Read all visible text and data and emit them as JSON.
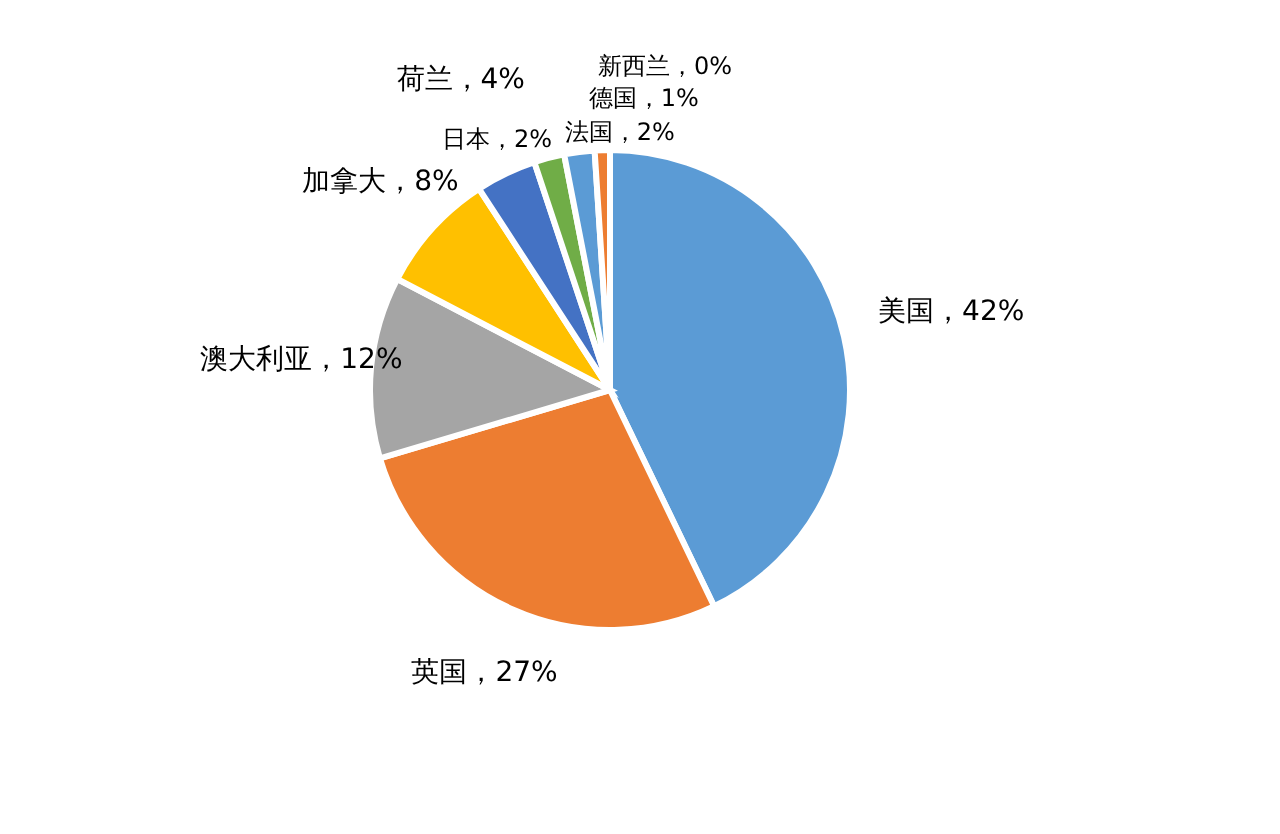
{
  "chart_data": {
    "type": "pie",
    "categories": [
      "美国，42%",
      "英国，27%",
      "澳大利亚，12%",
      "加拿大，8%",
      "荷兰，4%",
      "日本，2%",
      "法国，2%",
      "德国，1%",
      "新西兰，0%"
    ],
    "values": [
      42,
      27,
      12,
      8,
      4,
      2,
      2,
      1,
      0
    ],
    "colors": [
      "#5b9bd5",
      "#ed7d31",
      "#a5a5a5",
      "#ffc000",
      "#4472c4",
      "#70ad47",
      "#5b9bd5",
      "#ed7d31",
      "#a5a5a5"
    ]
  }
}
